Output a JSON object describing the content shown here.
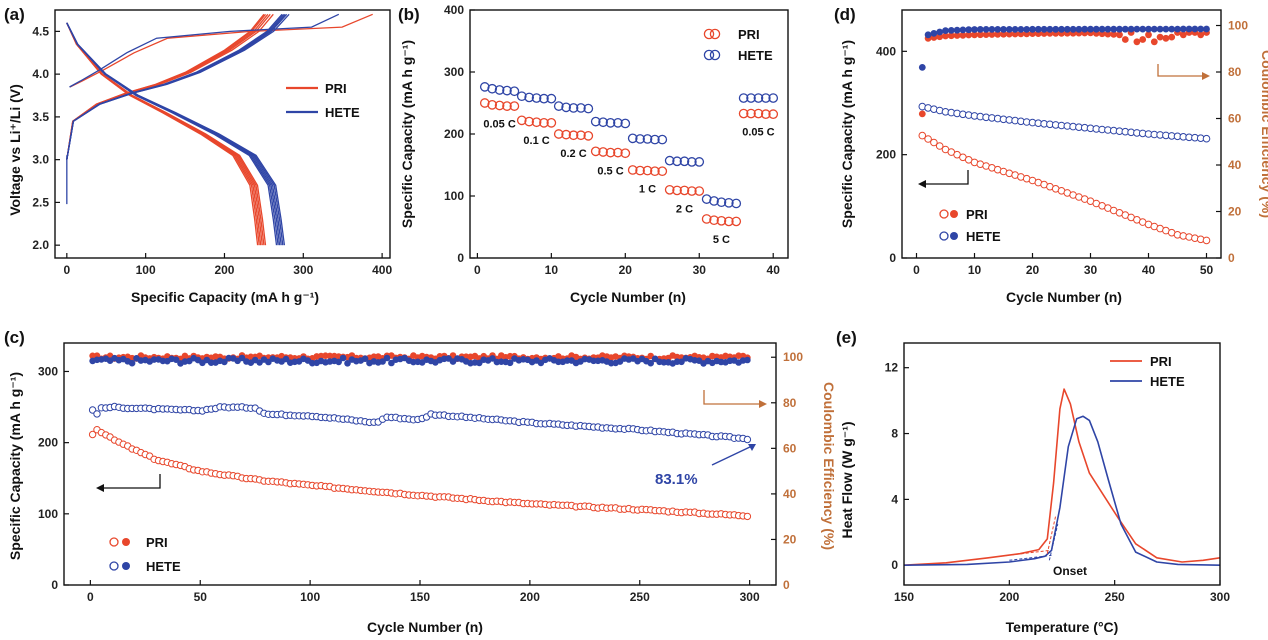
{
  "colors": {
    "pri": "#e8472c",
    "hete": "#2f45a6",
    "ce_axis": "#c0703a",
    "axis": "#111111"
  },
  "chart_data": [
    {
      "id": "a",
      "panel_label": "(a)",
      "type": "line",
      "xlabel": "Specific Capacity (mA h g⁻¹)",
      "ylabel": "Voltage vs Li⁺/Li (V)",
      "xlim": [
        -15,
        410
      ],
      "ylim": [
        1.85,
        4.75
      ],
      "xticks": [
        0,
        100,
        200,
        300,
        400
      ],
      "yticks": [
        2.0,
        2.5,
        3.0,
        3.5,
        4.0,
        4.5
      ],
      "ytick_labels": [
        "2.0",
        "2.5",
        "3.0",
        "3.5",
        "4.0",
        "4.5"
      ],
      "legend": [
        {
          "key": "pri",
          "label": "PRI"
        },
        {
          "key": "hete",
          "label": "HETE"
        }
      ],
      "series": [
        {
          "name": "PRI",
          "color_key": "pri",
          "charge_caps": [
            388,
            262,
            258,
            255,
            252,
            250
          ],
          "discharge_caps": [
            252,
            250,
            248,
            246,
            244,
            242
          ]
        },
        {
          "name": "HETE",
          "color_key": "hete",
          "charge_caps": [
            345,
            282,
            279,
            277,
            275,
            273
          ],
          "discharge_caps": [
            276,
            274,
            272,
            270,
            268,
            266
          ]
        }
      ]
    },
    {
      "id": "b",
      "panel_label": "(b)",
      "type": "scatter",
      "xlabel": "Cycle Number (n)",
      "ylabel": "Specific Capacity (mA h g⁻¹)",
      "xlim": [
        -1,
        42
      ],
      "ylim": [
        0,
        400
      ],
      "xticks": [
        0,
        10,
        20,
        30,
        40
      ],
      "yticks": [
        0,
        100,
        200,
        300,
        400
      ],
      "legend": [
        {
          "key": "pri",
          "label": "PRI"
        },
        {
          "key": "hete",
          "label": "HETE"
        }
      ],
      "rates": [
        {
          "label": "0.05 C",
          "cycles": [
            1,
            2,
            3,
            4,
            5
          ],
          "pri": [
            250,
            247,
            246,
            245,
            245
          ],
          "hete": [
            276,
            273,
            271,
            270,
            269
          ]
        },
        {
          "label": "0.1 C",
          "cycles": [
            6,
            7,
            8,
            9,
            10
          ],
          "pri": [
            222,
            220,
            219,
            218,
            218
          ],
          "hete": [
            261,
            259,
            258,
            257,
            257
          ]
        },
        {
          "label": "0.2 C",
          "cycles": [
            11,
            12,
            13,
            14,
            15
          ],
          "pri": [
            200,
            199,
            198,
            198,
            197
          ],
          "hete": [
            245,
            243,
            242,
            242,
            241
          ]
        },
        {
          "label": "0.5 C",
          "cycles": [
            16,
            17,
            18,
            19,
            20
          ],
          "pri": [
            172,
            171,
            170,
            170,
            169
          ],
          "hete": [
            220,
            219,
            218,
            218,
            217
          ]
        },
        {
          "label": "1 C",
          "cycles": [
            21,
            22,
            23,
            24,
            25
          ],
          "pri": [
            142,
            141,
            141,
            140,
            140
          ],
          "hete": [
            193,
            192,
            192,
            191,
            191
          ]
        },
        {
          "label": "2 C",
          "cycles": [
            26,
            27,
            28,
            29,
            30
          ],
          "pri": [
            110,
            109,
            109,
            108,
            108
          ],
          "hete": [
            157,
            156,
            156,
            155,
            155
          ]
        },
        {
          "label": "5 C",
          "cycles": [
            31,
            32,
            33,
            34,
            35
          ],
          "pri": [
            63,
            61,
            60,
            59,
            59
          ],
          "hete": [
            95,
            92,
            90,
            89,
            88
          ]
        },
        {
          "label": "0.05 C",
          "cycles": [
            36,
            37,
            38,
            39,
            40
          ],
          "pri": [
            233,
            233,
            233,
            232,
            232
          ],
          "hete": [
            258,
            258,
            258,
            258,
            258
          ]
        }
      ]
    },
    {
      "id": "c",
      "panel_label": "(c)",
      "type": "scatter",
      "xlabel": "Cycle Number (n)",
      "ylabel": "Specific Capacity (mA h g⁻¹)",
      "ylabel_right": "Coulombic Efficiency (%)",
      "xlim": [
        -12,
        312
      ],
      "ylim": [
        0,
        340
      ],
      "ylim_right": [
        0,
        106.25
      ],
      "xticks": [
        0,
        50,
        100,
        150,
        200,
        250,
        300
      ],
      "yticks": [
        0,
        100,
        200,
        300
      ],
      "yticks_right": [
        0,
        20,
        40,
        60,
        80,
        100
      ],
      "legend": [
        {
          "key": "pri",
          "label": "PRI"
        },
        {
          "key": "hete",
          "label": "HETE"
        }
      ],
      "annotation": "83.1%",
      "series": [
        {
          "name": "PRI capacity",
          "color_key": "pri",
          "cycles": [
            1,
            2,
            5,
            10,
            20,
            30,
            50,
            75,
            100,
            150,
            200,
            250,
            300
          ],
          "values": [
            212,
            220,
            215,
            205,
            190,
            176,
            160,
            148,
            140,
            126,
            114,
            106,
            97
          ]
        },
        {
          "name": "HETE capacity",
          "color_key": "hete",
          "cycles": [
            1,
            2,
            5,
            10,
            30,
            50,
            60,
            75,
            80,
            100,
            130,
            135,
            150,
            155,
            200,
            250,
            300
          ],
          "values": [
            246,
            238,
            248,
            250,
            247,
            245,
            250,
            249,
            240,
            238,
            228,
            236,
            232,
            240,
            228,
            218,
            205
          ]
        },
        {
          "name": "PRI CE",
          "color_key": "pri",
          "cycles": [
            1,
            300
          ],
          "values": [
            100,
            100
          ]
        },
        {
          "name": "HETE CE",
          "color_key": "hete",
          "cycles": [
            1,
            300
          ],
          "values": [
            98.5,
            98.5
          ]
        }
      ]
    },
    {
      "id": "d",
      "panel_label": "(d)",
      "type": "scatter",
      "xlabel": "Cycle Number (n)",
      "ylabel": "Specific Capacity (mA h g⁻¹)",
      "ylabel_right": "Coulombic Efficiency (%)",
      "xlim": [
        -2.5,
        52.5
      ],
      "ylim": [
        0,
        480
      ],
      "ylim_right": [
        0,
        106.67
      ],
      "xticks": [
        0,
        10,
        20,
        30,
        40,
        50
      ],
      "yticks": [
        0,
        200,
        400
      ],
      "yticks_right": [
        0,
        20,
        40,
        60,
        80,
        100
      ],
      "legend": [
        {
          "key": "pri",
          "label": "PRI"
        },
        {
          "key": "hete",
          "label": "HETE"
        }
      ],
      "series": [
        {
          "name": "PRI capacity",
          "color_key": "pri",
          "cycles": [
            1,
            5,
            10,
            20,
            30,
            40,
            45,
            50
          ],
          "values": [
            237,
            210,
            185,
            150,
            110,
            65,
            45,
            34
          ]
        },
        {
          "name": "HETE capacity",
          "color_key": "hete",
          "cycles": [
            1,
            5,
            10,
            20,
            30,
            40,
            50
          ],
          "values": [
            293,
            283,
            275,
            262,
            251,
            240,
            231
          ]
        },
        {
          "name": "PRI CE",
          "color_key": "pri",
          "cycles": [
            1,
            2,
            5,
            10,
            20,
            30,
            35,
            36,
            37,
            38,
            39,
            40,
            41,
            42,
            43,
            44,
            45,
            46,
            47,
            48,
            49,
            50
          ],
          "values": [
            62,
            94.5,
            95.5,
            96,
            96.5,
            96.8,
            96,
            94,
            97,
            93,
            94,
            96,
            93,
            95,
            94.5,
            95,
            97,
            96,
            97,
            97,
            96,
            97
          ]
        },
        {
          "name": "HETE CE",
          "color_key": "hete",
          "cycles": [
            1,
            2,
            5,
            10,
            50
          ],
          "values": [
            82,
            96,
            97.8,
            98.3,
            98.5
          ]
        }
      ]
    },
    {
      "id": "e",
      "panel_label": "(e)",
      "type": "line",
      "xlabel": "Temperature (°C)",
      "ylabel": "Heat Flow (W g⁻¹)",
      "xlim": [
        150,
        300
      ],
      "ylim": [
        -1.2,
        13.5
      ],
      "xticks": [
        150,
        200,
        250,
        300
      ],
      "yticks": [
        0,
        4,
        8,
        12
      ],
      "legend": [
        {
          "key": "pri",
          "label": "PRI"
        },
        {
          "key": "hete",
          "label": "HETE"
        }
      ],
      "annotation": "Onset",
      "series": [
        {
          "name": "PRI",
          "color_key": "pri",
          "x": [
            150,
            170,
            190,
            205,
            214,
            218,
            221,
            224,
            226,
            229,
            233,
            238,
            245,
            252,
            260,
            270,
            282,
            292,
            300
          ],
          "y": [
            0,
            0.15,
            0.45,
            0.7,
            0.95,
            1.6,
            5,
            9.5,
            10.7,
            9.8,
            7.5,
            5.6,
            4.2,
            2.8,
            1.3,
            0.45,
            0.2,
            0.3,
            0.45
          ]
        },
        {
          "name": "HETE",
          "color_key": "hete",
          "x": [
            150,
            180,
            200,
            212,
            217,
            220,
            224,
            228,
            232,
            235,
            238,
            242,
            247,
            253,
            260,
            270,
            280,
            300
          ],
          "y": [
            0,
            0.05,
            0.2,
            0.4,
            0.55,
            0.9,
            3.5,
            7.2,
            8.9,
            9.05,
            8.8,
            7.5,
            5.2,
            2.5,
            0.8,
            0.2,
            0.05,
            0
          ]
        }
      ]
    }
  ]
}
